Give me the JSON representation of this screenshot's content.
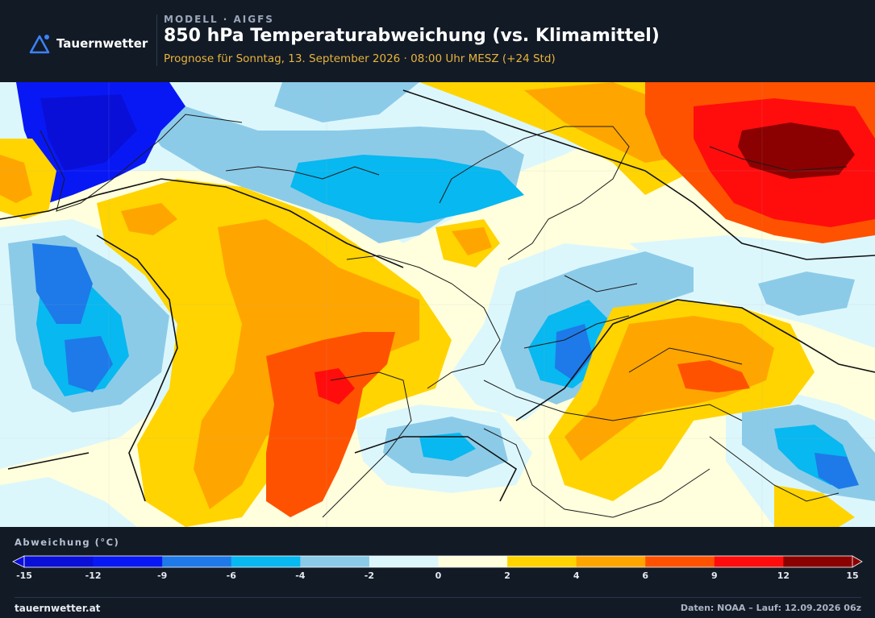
{
  "header": {
    "brand": "Tauernwetter",
    "model_line": "MODELL · AIGFS",
    "title": "850 hPa Temperaturabweichung (vs. Klimamittel)",
    "forecast": "Prognose für Sonntag, 13. September 2026 · 08:00 Uhr MESZ  (+24 Std)"
  },
  "legend": {
    "label": "Abweichung (°C)",
    "ticks": [
      "-15",
      "-12",
      "-9",
      "-6",
      "-4",
      "-2",
      "0",
      "2",
      "4",
      "6",
      "9",
      "12",
      "15"
    ],
    "colors": [
      "#0a0fd8",
      "#0818f5",
      "#1e7ae8",
      "#08b8f0",
      "#8ccbe8",
      "#dcf7fc",
      "#ffffdd",
      "#ffd400",
      "#ffa500",
      "#ff5200",
      "#ff0d0d",
      "#8b0000"
    ],
    "low_cap_color": "#0a0fd8",
    "high_cap_color": "#8b0000"
  },
  "footer": {
    "site": "tauernwetter.at",
    "source": "Daten: NOAA – Lauf: 12.09.2026 06z"
  }
}
